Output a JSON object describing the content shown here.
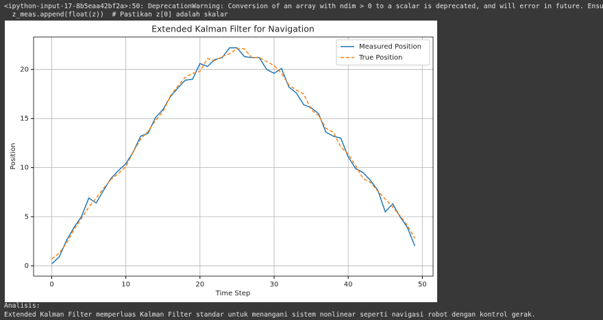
{
  "warning": {
    "lines": [
      "<ipython-input-17-8b5eaa42bf2a>:50: DeprecationWarning: Conversion of an array with ndim > 0 to a scalar is deprecated, and will error in future. Ensu",
      "  z_meas.append(float(z))  # Pastikan z[0] adalah skalar"
    ]
  },
  "analysis": {
    "heading": "Analisis:",
    "text": "Extended Kalman Filter memperluas Kalman Filter standar untuk menangani sistem nonlinear seperti navigasi robot dengan kontrol gerak."
  },
  "chart_data": {
    "type": "line",
    "title": "Extended Kalman Filter for Navigation",
    "x_label": "Time Step",
    "y_label": "Position",
    "x": [
      0,
      1,
      2,
      3,
      4,
      5,
      6,
      7,
      8,
      9,
      10,
      11,
      12,
      13,
      14,
      15,
      16,
      17,
      18,
      19,
      20,
      21,
      22,
      23,
      24,
      25,
      26,
      27,
      28,
      29,
      30,
      31,
      32,
      33,
      34,
      35,
      36,
      37,
      38,
      39,
      40,
      41,
      42,
      43,
      44,
      45,
      46,
      47,
      48,
      49
    ],
    "series": [
      {
        "name": "Measured Position",
        "color": "#1f77b4",
        "dash": false,
        "values": [
          0.2,
          0.9,
          2.6,
          3.9,
          5.0,
          6.9,
          6.4,
          7.7,
          8.9,
          9.7,
          10.4,
          11.6,
          13.2,
          13.5,
          15.1,
          15.9,
          17.2,
          18.1,
          18.9,
          19.0,
          20.6,
          20.3,
          21.0,
          21.2,
          22.2,
          22.2,
          21.3,
          21.2,
          21.2,
          20.0,
          19.6,
          20.1,
          18.2,
          17.6,
          16.4,
          16.1,
          15.5,
          13.6,
          13.2,
          13.0,
          11.1,
          9.9,
          9.5,
          8.7,
          7.7,
          5.5,
          6.3,
          5.0,
          3.9,
          2.0
        ]
      },
      {
        "name": "True Position",
        "color": "#ff7f0e",
        "dash": true,
        "values": [
          0.7,
          1.3,
          2.3,
          3.7,
          4.8,
          6.0,
          6.9,
          7.9,
          8.8,
          9.4,
          10.1,
          11.6,
          12.9,
          13.7,
          14.8,
          15.7,
          17.3,
          18.3,
          19.2,
          19.6,
          19.8,
          21.1,
          20.9,
          21.3,
          21.6,
          22.1,
          22.1,
          21.2,
          21.2,
          20.8,
          20.4,
          19.6,
          18.4,
          17.9,
          17.5,
          15.9,
          15.3,
          14.0,
          13.6,
          12.1,
          11.4,
          10.2,
          8.9,
          8.5,
          7.6,
          6.8,
          6.0,
          5.1,
          4.1,
          2.8
        ]
      }
    ],
    "xlim": [
      -2.45,
      51.45
    ],
    "ylim": [
      -1.05,
      23.3
    ],
    "xticks": [
      0,
      10,
      20,
      30,
      40,
      50
    ],
    "yticks": [
      0,
      5,
      10,
      15,
      20
    ],
    "grid": true,
    "legend": "upper right"
  }
}
